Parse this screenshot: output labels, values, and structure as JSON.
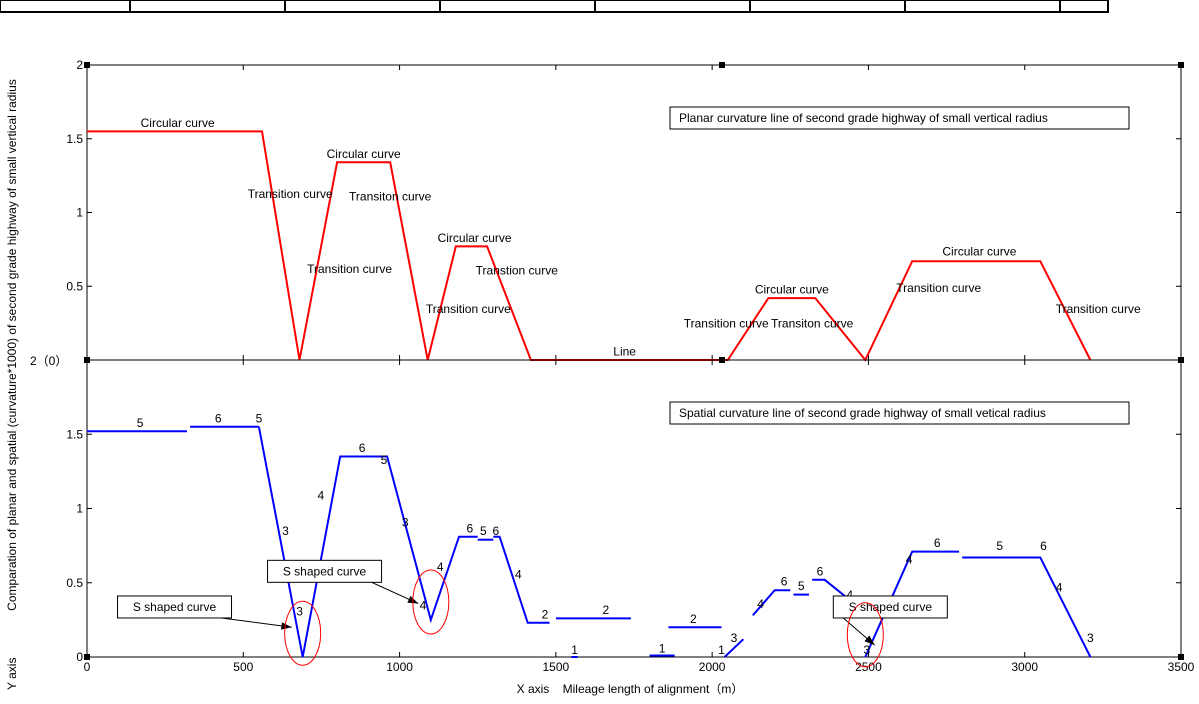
{
  "figure": {
    "y_axis_title": "Comparation of planar and spatial (curvature*1000) of second grade highway of small vertical radius",
    "y_axis_tag": "Y axis",
    "x_axis_title": "X axis    Mileage length of alignment（m）",
    "top_left_label": "2（0）",
    "top_tick_zero": "0"
  },
  "chart_data": [
    {
      "type": "line",
      "name": "planar",
      "legend": "Planar curvature line of second grade highway of small vertical radius",
      "color": "#ff0000",
      "xlim": [
        0,
        3500
      ],
      "ylim": [
        0,
        2
      ],
      "x_ticks": [
        "0",
        "500",
        "1000",
        "1500",
        "2000",
        "2500",
        "3000",
        "3500"
      ],
      "y_ticks": [
        "0.5",
        "1",
        "1.5",
        "2"
      ],
      "series": [
        {
          "x": [
            0,
            560,
            680,
            800,
            970,
            1090,
            1180,
            1280,
            1420,
            2050,
            2180,
            2330,
            2490,
            2640,
            3050,
            3210
          ],
          "y": [
            1.55,
            1.55,
            0,
            1.34,
            1.34,
            0,
            0.77,
            0.77,
            0,
            0,
            0.42,
            0.42,
            0,
            0.67,
            0.67,
            0
          ]
        }
      ],
      "annotations": [
        {
          "text": "Circular curve",
          "x": 290,
          "y": 1.58
        },
        {
          "text": "Transition curve",
          "x": 650,
          "y": 1.1
        },
        {
          "text": "Circular curve",
          "x": 885,
          "y": 1.37
        },
        {
          "text": "Transiton curve",
          "x": 970,
          "y": 1.08
        },
        {
          "text": "Transition curve",
          "x": 840,
          "y": 0.59
        },
        {
          "text": "Circular curve",
          "x": 1240,
          "y": 0.8
        },
        {
          "text": "Transtion curve",
          "x": 1375,
          "y": 0.58
        },
        {
          "text": "Transition curve",
          "x": 1220,
          "y": 0.32
        },
        {
          "text": "Line",
          "x": 1720,
          "y": 0.03
        },
        {
          "text": "Circular curve",
          "x": 2255,
          "y": 0.45
        },
        {
          "text": "Transition curve",
          "x": 2045,
          "y": 0.22
        },
        {
          "text": "Transiton curve",
          "x": 2320,
          "y": 0.22
        },
        {
          "text": "Circular curve",
          "x": 2855,
          "y": 0.71
        },
        {
          "text": "Transition curve",
          "x": 2725,
          "y": 0.46
        },
        {
          "text": "Transition curve",
          "x": 3235,
          "y": 0.32
        }
      ]
    },
    {
      "type": "line",
      "name": "spatial",
      "legend": "Spatial curvature line of second grade highway of small vetical radius",
      "color": "#0000ff",
      "xlim": [
        0,
        3500
      ],
      "ylim": [
        0,
        2
      ],
      "x_ticks": [
        "0",
        "500",
        "1000",
        "1500",
        "2000",
        "2500",
        "3000",
        "3500"
      ],
      "y_ticks": [
        "0",
        "0.5",
        "1",
        "1.5"
      ],
      "series": [
        {
          "x": [
            0,
            320
          ],
          "y": [
            1.52,
            1.52
          ]
        },
        {
          "x": [
            330,
            550
          ],
          "y": [
            1.55,
            1.55
          ]
        },
        {
          "x": [
            550,
            690,
            810,
            960,
            1100,
            1190,
            1250
          ],
          "y": [
            1.55,
            0,
            1.35,
            1.35,
            0.25,
            0.81,
            0.81
          ]
        },
        {
          "x": [
            1250,
            1300
          ],
          "y": [
            0.79,
            0.79
          ]
        },
        {
          "x": [
            1300,
            1320,
            1410,
            1480
          ],
          "y": [
            0.81,
            0.81,
            0.23,
            0.23
          ]
        },
        {
          "x": [
            1500,
            1740
          ],
          "y": [
            0.26,
            0.26
          ]
        },
        {
          "x": [
            1550,
            1570
          ],
          "y": [
            0.0,
            0.0
          ]
        },
        {
          "x": [
            1800,
            1880
          ],
          "y": [
            0.01,
            0.01
          ]
        },
        {
          "x": [
            1860,
            2030
          ],
          "y": [
            0.2,
            0.2
          ]
        },
        {
          "x": [
            2040,
            2100
          ],
          "y": [
            0.0,
            0.12
          ]
        },
        {
          "x": [
            2130,
            2200,
            2250
          ],
          "y": [
            0.28,
            0.45,
            0.45
          ]
        },
        {
          "x": [
            2260,
            2310
          ],
          "y": [
            0.42,
            0.42
          ]
        },
        {
          "x": [
            2320,
            2360,
            2490
          ],
          "y": [
            0.52,
            0.52,
            0.3
          ]
        },
        {
          "x": [
            2490,
            2640,
            2790
          ],
          "y": [
            0.0,
            0.71,
            0.71
          ]
        },
        {
          "x": [
            2800,
            3050,
            3210
          ],
          "y": [
            0.67,
            0.67,
            0.0
          ]
        }
      ],
      "annotations": [
        {
          "text": "5",
          "x": 170,
          "y": 1.55
        },
        {
          "text": "6",
          "x": 420,
          "y": 1.58
        },
        {
          "text": "5",
          "x": 550,
          "y": 1.58
        },
        {
          "text": "3",
          "x": 635,
          "y": 0.82
        },
        {
          "text": "3",
          "x": 680,
          "y": 0.28
        },
        {
          "text": "4",
          "x": 748,
          "y": 1.06
        },
        {
          "text": "6",
          "x": 880,
          "y": 1.38
        },
        {
          "text": "5",
          "x": 950,
          "y": 1.3
        },
        {
          "text": "3",
          "x": 1018,
          "y": 0.88
        },
        {
          "text": "4",
          "x": 1130,
          "y": 0.58
        },
        {
          "text": "4",
          "x": 1075,
          "y": 0.32
        },
        {
          "text": "6",
          "x": 1225,
          "y": 0.84
        },
        {
          "text": "5",
          "x": 1268,
          "y": 0.82
        },
        {
          "text": "6",
          "x": 1308,
          "y": 0.82
        },
        {
          "text": "4",
          "x": 1380,
          "y": 0.53
        },
        {
          "text": "2",
          "x": 1465,
          "y": 0.26
        },
        {
          "text": "2",
          "x": 1660,
          "y": 0.29
        },
        {
          "text": "1",
          "x": 1560,
          "y": 0.02
        },
        {
          "text": "1",
          "x": 1840,
          "y": 0.03
        },
        {
          "text": "2",
          "x": 1940,
          "y": 0.23
        },
        {
          "text": "1",
          "x": 2030,
          "y": 0.02
        },
        {
          "text": "3",
          "x": 2070,
          "y": 0.1
        },
        {
          "text": "4",
          "x": 2155,
          "y": 0.33
        },
        {
          "text": "6",
          "x": 2230,
          "y": 0.48
        },
        {
          "text": "5",
          "x": 2285,
          "y": 0.45
        },
        {
          "text": "6",
          "x": 2345,
          "y": 0.55
        },
        {
          "text": "4",
          "x": 2440,
          "y": 0.39
        },
        {
          "text": "3",
          "x": 2545,
          "y": 0.29
        },
        {
          "text": "3",
          "x": 2495,
          "y": 0.02
        },
        {
          "text": "4",
          "x": 2630,
          "y": 0.63
        },
        {
          "text": "6",
          "x": 2720,
          "y": 0.74
        },
        {
          "text": "5",
          "x": 2920,
          "y": 0.72
        },
        {
          "text": "6",
          "x": 3060,
          "y": 0.72
        },
        {
          "text": "4",
          "x": 3110,
          "y": 0.44
        },
        {
          "text": "3",
          "x": 3210,
          "y": 0.1
        }
      ],
      "callouts": [
        {
          "text": "S shaped curve",
          "box_x": 280,
          "box_y": 0.31,
          "tip_x": 655,
          "tip_y": 0.2,
          "ellipse_x": 690,
          "ellipse_y": 0.16
        },
        {
          "text": "S shaped curve",
          "box_x": 760,
          "box_y": 0.55,
          "tip_x": 1060,
          "tip_y": 0.36,
          "ellipse_x": 1100,
          "ellipse_y": 0.37
        },
        {
          "text": "S shaped curve",
          "box_x": 2570,
          "box_y": 0.31,
          "tip_x": 2520,
          "tip_y": 0.08,
          "ellipse_x": 2490,
          "ellipse_y": 0.15
        }
      ]
    }
  ]
}
